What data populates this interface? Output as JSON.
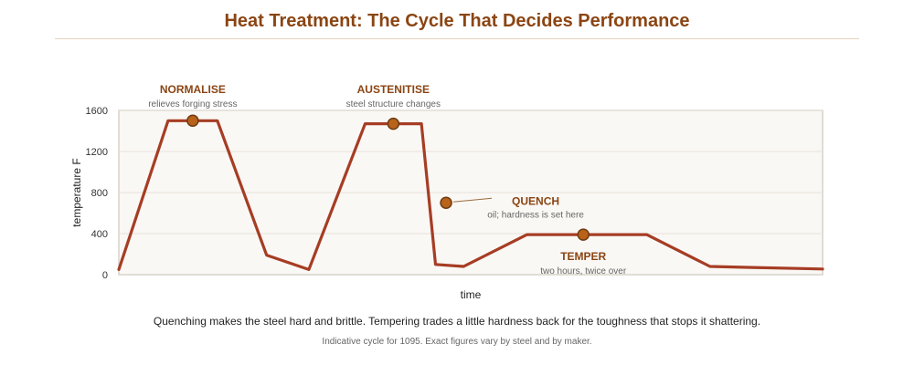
{
  "title": "Heat Treatment: The Cycle That Decides Performance",
  "caption": "Quenching makes the steel hard and brittle. Tempering trades a little hardness back for the toughness that stops it shattering.",
  "note": "Indicative cycle for 1095. Exact figures vary by steel and by maker.",
  "colors": {
    "line": "#a63d24",
    "marker": "#b8621a",
    "marker_stroke": "#6e3b12",
    "label": "#8b4513",
    "plot_bg": "#faf8f5",
    "plot_border": "#d8d2c8",
    "grid": "#e7e2da"
  },
  "chart_data": {
    "type": "line",
    "title": "Heat Treatment: The Cycle That Decides Performance",
    "xlabel": "time",
    "ylabel": "temperature F",
    "ylim": [
      0,
      1600
    ],
    "xlim": [
      0,
      100
    ],
    "yticks": [
      0,
      400,
      800,
      1200,
      1600
    ],
    "x_tick_labels": false,
    "grid": "horizontal",
    "series": [
      {
        "x": [
          0,
          7,
          14,
          21,
          27,
          35,
          43,
          45,
          49,
          58,
          75,
          84,
          90,
          100
        ],
        "y": [
          50,
          1500,
          1500,
          190,
          50,
          1470,
          1470,
          100,
          80,
          390,
          390,
          80,
          70,
          55
        ]
      }
    ],
    "annotations": [
      {
        "label": "NORMALISE",
        "sublabel": "relieves forging stress",
        "x": 10.5,
        "y": 1500,
        "anchor": "above"
      },
      {
        "label": "AUSTENITISE",
        "sublabel": "steel structure changes",
        "x": 39,
        "y": 1470,
        "anchor": "above"
      },
      {
        "label": "QUENCH",
        "sublabel": "oil; hardness is set here",
        "x": 46.5,
        "y": 700,
        "anchor": "right"
      },
      {
        "label": "TEMPER",
        "sublabel": "two hours, twice over",
        "x": 66,
        "y": 390,
        "anchor": "below"
      }
    ]
  }
}
